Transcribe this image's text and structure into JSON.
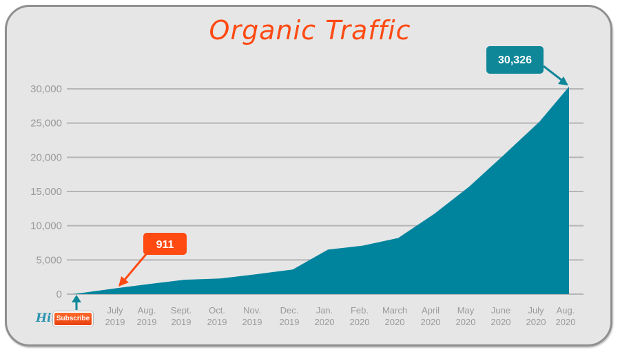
{
  "title": "Organic Traffic",
  "colors": {
    "area": "#00849e",
    "title": "#ff4a12",
    "callout_start": "#ff4a12",
    "callout_end": "#0f8799",
    "gridline": "#b5b5b5",
    "tick_text": "#9a9a9a",
    "background": "#e6e6e6"
  },
  "callouts": {
    "start_value": "911",
    "end_value": "30,326"
  },
  "subscribe": {
    "hit_label": "Hit",
    "button_label": "Subscribe"
  },
  "chart_data": {
    "type": "area",
    "title": "Organic Traffic",
    "xlabel": "",
    "ylabel": "",
    "ylim": [
      0,
      30000
    ],
    "yticks": [
      "0",
      "5,000",
      "10,000",
      "15,000",
      "20,000",
      "25,000",
      "30,000"
    ],
    "grid": true,
    "legend": null,
    "categories": [
      [
        "July",
        "2019"
      ],
      [
        "Aug.",
        "2019"
      ],
      [
        "Sept.",
        "2019"
      ],
      [
        "Oct.",
        "2019"
      ],
      [
        "Nov.",
        "2019"
      ],
      [
        "Dec.",
        "2019"
      ],
      [
        "Jan.",
        "2020"
      ],
      [
        "Feb.",
        "2020"
      ],
      [
        "March",
        "2020"
      ],
      [
        "April",
        "2020"
      ],
      [
        "May",
        "2020"
      ],
      [
        "June",
        "2020"
      ],
      [
        "July",
        "2020"
      ],
      [
        "Aug.",
        "2020"
      ]
    ],
    "series": [
      {
        "name": "Organic Traffic",
        "start_value": 0,
        "values": [
          911,
          1500,
          2100,
          2300,
          2900,
          3600,
          6500,
          7100,
          8200,
          11700,
          15700,
          20400,
          25200,
          30326
        ]
      }
    ],
    "annotations": [
      {
        "label": "911",
        "category": "July 2019",
        "color": "#ff4a12"
      },
      {
        "label": "30,326",
        "category": "Aug. 2020",
        "color": "#0f8799"
      }
    ]
  }
}
